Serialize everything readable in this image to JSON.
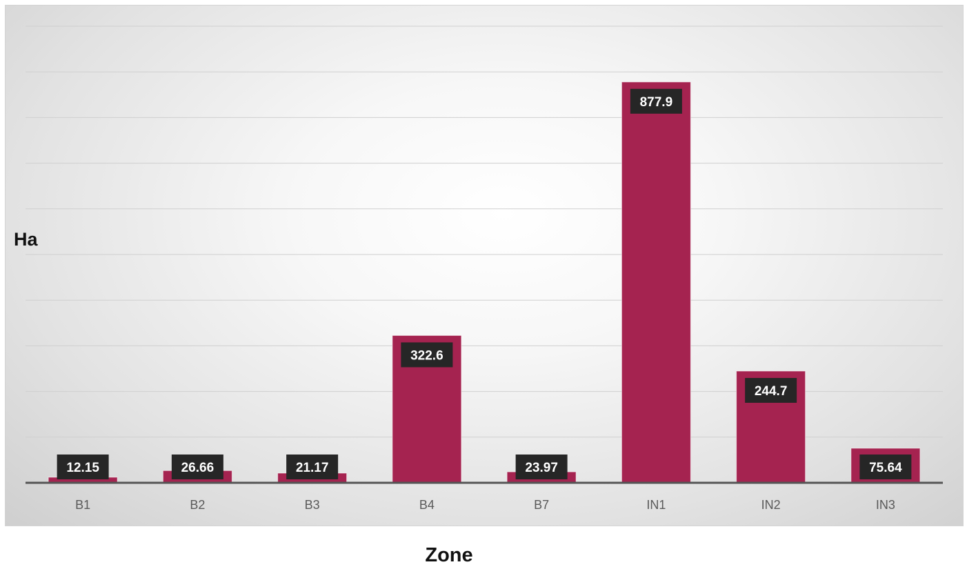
{
  "chart_data": {
    "type": "bar",
    "categories": [
      "B1",
      "B2",
      "B3",
      "B4",
      "B7",
      "IN1",
      "IN2",
      "IN3"
    ],
    "values": [
      12.15,
      26.66,
      21.17,
      322.6,
      23.97,
      877.9,
      244.7,
      75.64
    ],
    "data_labels": [
      "12.15",
      "26.66",
      "21.17",
      "322.6",
      "23.97",
      "877.9",
      "244.7",
      "75.64"
    ],
    "title": "",
    "xlabel": "Zone",
    "ylabel": "Ha",
    "ylim": [
      0,
      1000
    ],
    "grid": true,
    "legend": "none",
    "colors": {
      "bar": "#a52350",
      "label_bg": "#262626",
      "label_text": "#ffffff",
      "grid": "#cfcfcf",
      "axis": "#555555",
      "tick_text": "#595959"
    }
  }
}
